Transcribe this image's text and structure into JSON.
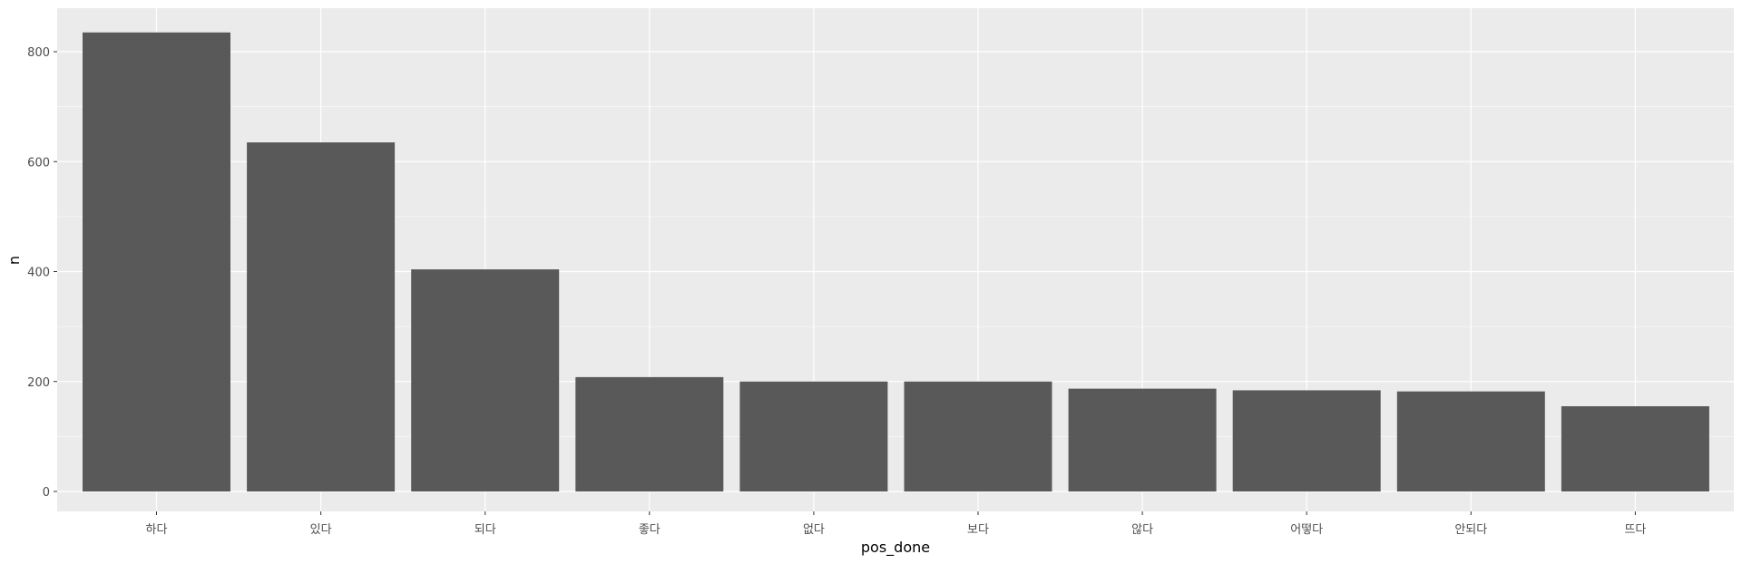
{
  "chart_data": {
    "type": "bar",
    "categories": [
      "하다",
      "있다",
      "되다",
      "좋다",
      "없다",
      "보다",
      "않다",
      "어떻다",
      "안되다",
      "뜨다"
    ],
    "values": [
      835,
      635,
      404,
      208,
      200,
      200,
      187,
      184,
      182,
      155
    ],
    "xlabel": "pos_done",
    "ylabel": "n",
    "ylim": [
      0,
      860
    ],
    "yticks": [
      0,
      200,
      400,
      600,
      800
    ],
    "grid": true,
    "colors": {
      "panel": "#ebebeb",
      "grid": "#ffffff",
      "bar": "#595959",
      "tick_text": "#4d4d4d",
      "tick_mark": "#333333"
    }
  }
}
